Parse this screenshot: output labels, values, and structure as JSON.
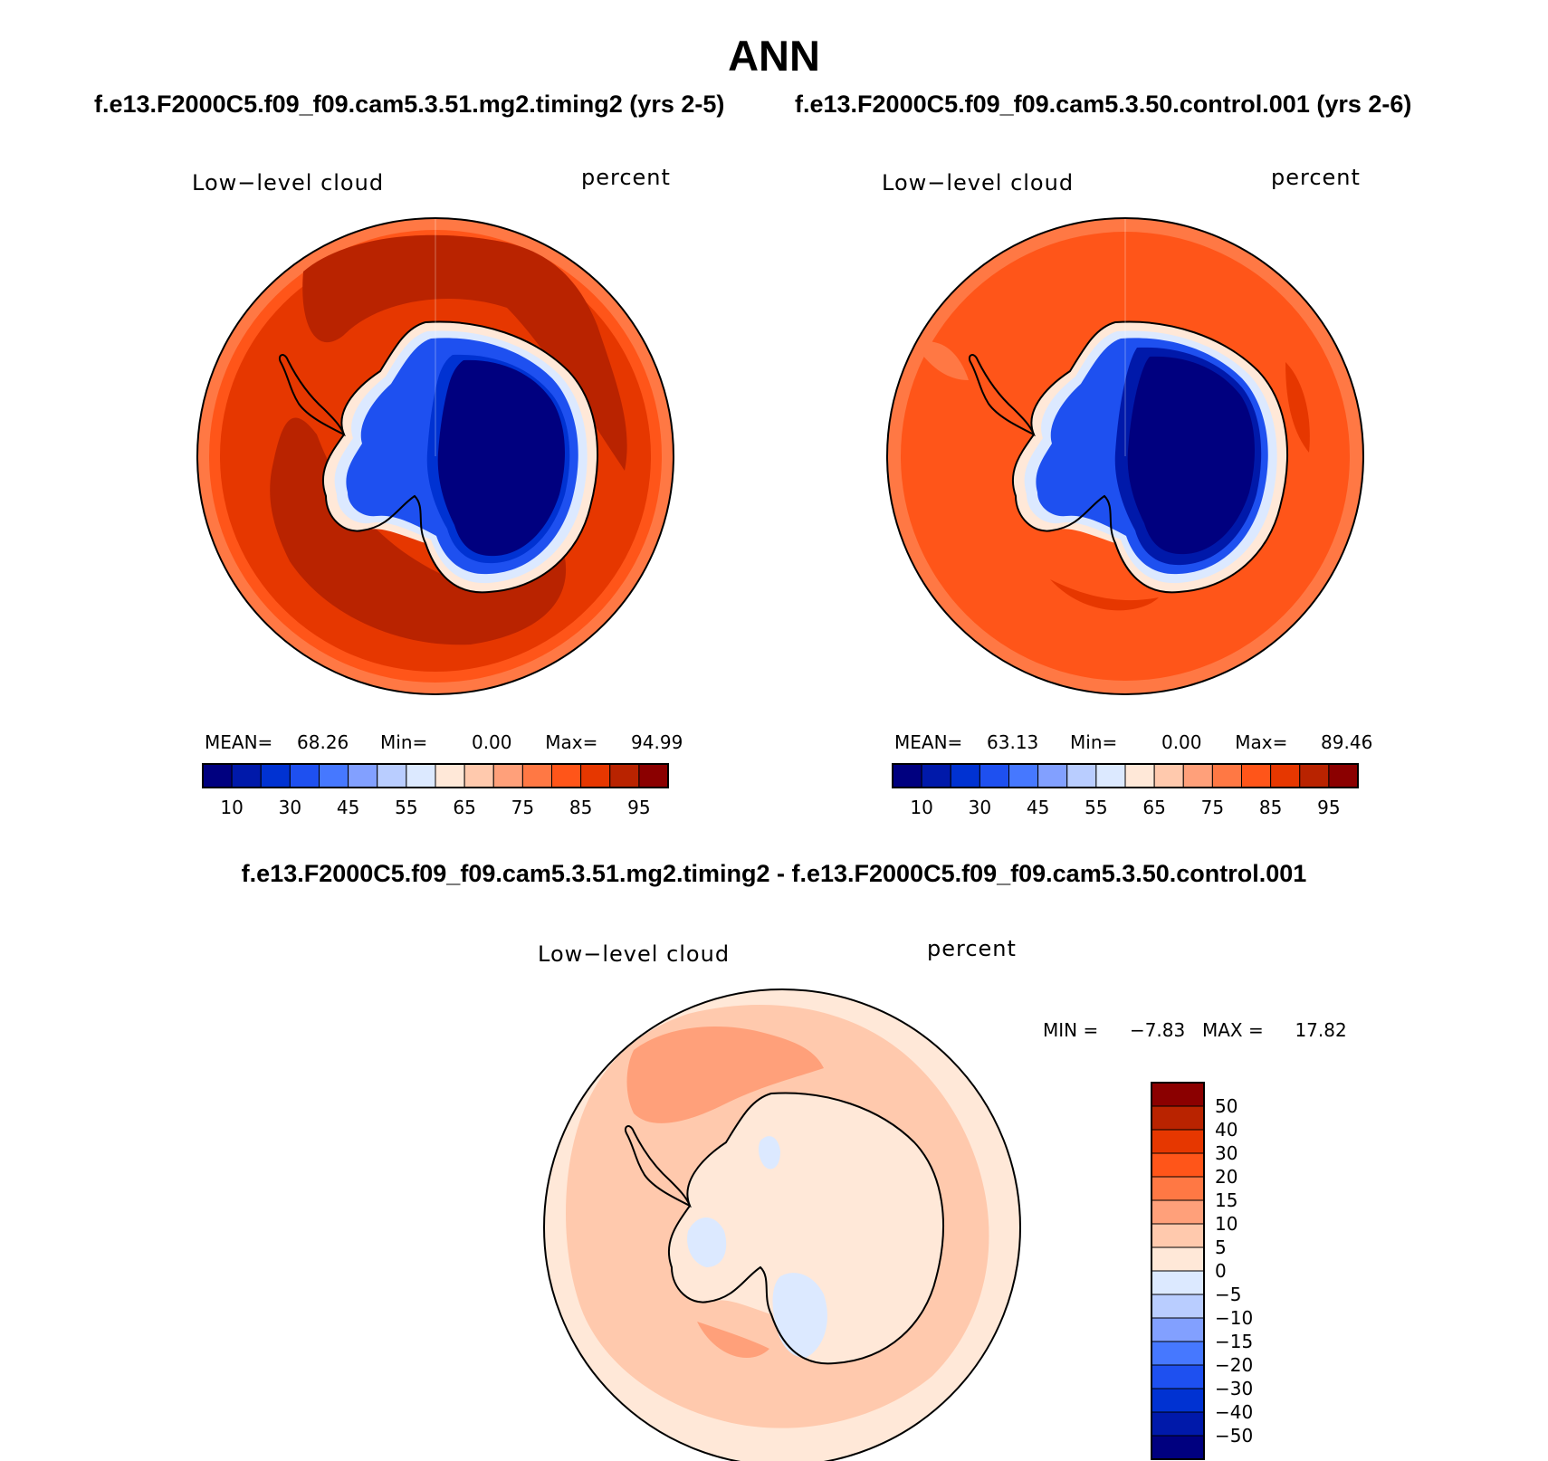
{
  "title": "ANN",
  "case1": {
    "title": "f.e13.F2000C5.f09_f09.cam5.3.51.mg2.timing2 (yrs 2-5)"
  },
  "case2": {
    "title": "f.e13.F2000C5.f09_f09.cam5.3.50.control.001 (yrs 2-6)"
  },
  "diff": {
    "title": "f.e13.F2000C5.f09_f09.cam5.3.51.mg2.timing2 - f.e13.F2000C5.f09_f09.cam5.3.50.control.001"
  },
  "map_data": [
    {
      "panel": "case1",
      "projection": "south polar stereographic",
      "variable": "Low−level cloud",
      "units": "percent",
      "mean_label": "MEAN=",
      "mean": "68.26",
      "min_label": "Min=",
      "min": "0.00",
      "max_label": "Max=",
      "max": "94.99",
      "colorbar": {
        "orientation": "horizontal",
        "tick_labels": [
          "10",
          "30",
          "45",
          "55",
          "65",
          "75",
          "85",
          "95"
        ],
        "colors": [
          "#00007f",
          "#0019aa",
          "#0032d2",
          "#1e50f0",
          "#4678ff",
          "#82a0ff",
          "#b9cdff",
          "#dce9ff",
          "#ffe8d8",
          "#ffc9ad",
          "#ffa07a",
          "#ff7844",
          "#ff5519",
          "#e63700",
          "#b92300",
          "#8b0000"
        ]
      }
    },
    {
      "panel": "case2",
      "projection": "south polar stereographic",
      "variable": "Low−level cloud",
      "units": "percent",
      "mean_label": "MEAN=",
      "mean": "63.13",
      "min_label": "Min=",
      "min": "0.00",
      "max_label": "Max=",
      "max": "89.46",
      "colorbar": {
        "orientation": "horizontal",
        "tick_labels": [
          "10",
          "30",
          "45",
          "55",
          "65",
          "75",
          "85",
          "95"
        ],
        "colors": [
          "#00007f",
          "#0019aa",
          "#0032d2",
          "#1e50f0",
          "#4678ff",
          "#82a0ff",
          "#b9cdff",
          "#dce9ff",
          "#ffe8d8",
          "#ffc9ad",
          "#ffa07a",
          "#ff7844",
          "#ff5519",
          "#e63700",
          "#b92300",
          "#8b0000"
        ]
      }
    },
    {
      "panel": "difference",
      "projection": "south polar stereographic",
      "variable": "Low−level cloud",
      "units": "percent",
      "min_label": "MIN =",
      "min": "−7.83",
      "max_label": "MAX =",
      "max": "17.82",
      "colorbar": {
        "orientation": "vertical",
        "tick_labels": [
          "50",
          "40",
          "30",
          "20",
          "15",
          "10",
          "5",
          "0",
          "−5",
          "−10",
          "−15",
          "−20",
          "−30",
          "−40",
          "−50"
        ],
        "colors": [
          "#8b0000",
          "#b92300",
          "#e63700",
          "#ff5519",
          "#ff7844",
          "#ffa07a",
          "#ffc9ad",
          "#ffe8d8",
          "#dce9ff",
          "#b9cdff",
          "#82a0ff",
          "#4678ff",
          "#1e50f0",
          "#0032d2",
          "#0019aa",
          "#00007f"
        ]
      }
    }
  ]
}
